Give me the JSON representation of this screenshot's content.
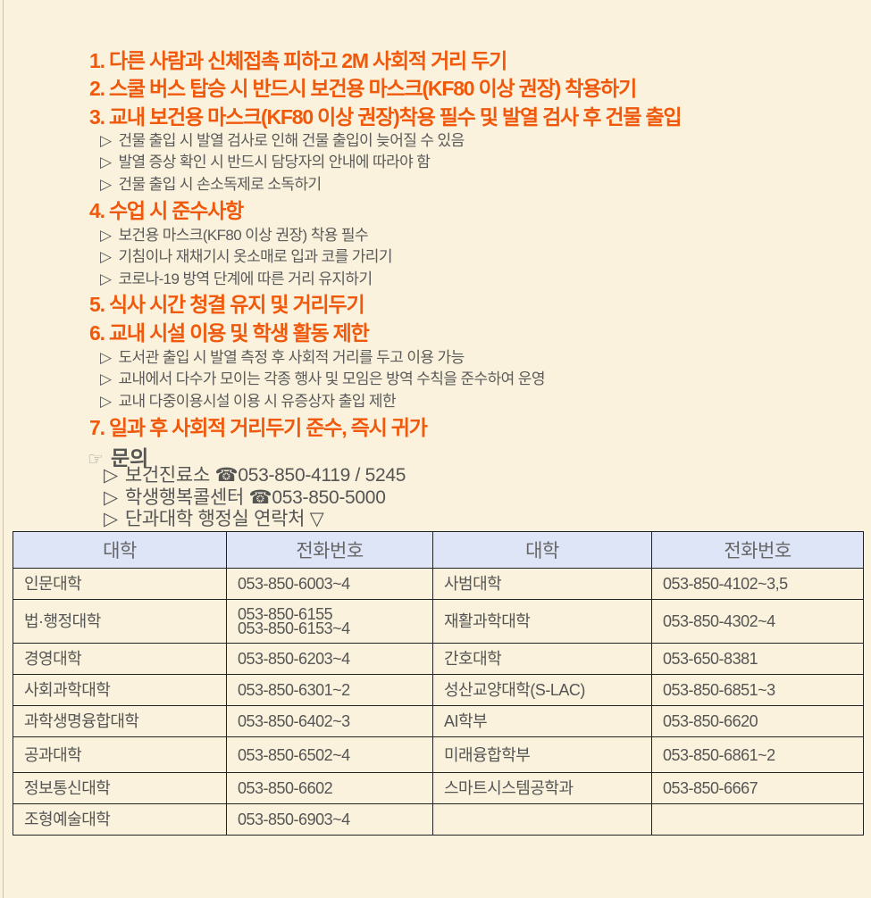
{
  "rules": [
    {
      "heading": "1. 다른 사람과 신체접촉 피하고 2M 사회적 거리 두기",
      "items": []
    },
    {
      "heading": "2. 스쿨 버스 탑승 시 반드시 보건용 마스크(KF80 이상 권장) 착용하기",
      "items": []
    },
    {
      "heading": "3. 교내 보건용 마스크(KF80 이상 권장)착용 필수 및 발열 검사 후 건물 출입",
      "items": [
        "건물 출입 시 발열 검사로 인해 건물 출입이 늦어질 수 있음",
        "발열 증상 확인 시 반드시 담당자의 안내에 따라야 함",
        "건물 출입 시 손소독제로 소독하기"
      ]
    },
    {
      "heading": "4. 수업 시 준수사항",
      "items": [
        "보건용 마스크(KF80 이상 권장) 착용 필수",
        "기침이나 재채기시 옷소매로 입과 코를 가리기",
        "코로나-19 방역 단계에 따른 거리 유지하기"
      ]
    },
    {
      "heading": "5. 식사 시간 청결 유지 및 거리두기",
      "items": []
    },
    {
      "heading": "6. 교내 시설 이용 및 학생 활동 제한",
      "items": [
        "도서관 출입 시 발열 측정 후 사회적 거리를 두고 이용 가능",
        "교내에서 다수가 모이는 각종 행사 및 모임은 방역 수칙을 준수하여 운영",
        "교내 다중이용시설 이용 시 유증상자 출입 제한"
      ]
    },
    {
      "heading": "7. 일과 후 사회적 거리두기 준수, 즉시 귀가",
      "items": []
    }
  ],
  "bullet": "▷",
  "inquiry": {
    "hand": "☞",
    "title": "문의",
    "contacts": [
      "보건진료소 ☎053-850-4119 / 5245",
      "학생행복콜센터 ☎053-850-5000",
      "단과대학 행정실 연락처 ▽"
    ]
  },
  "table": {
    "headers": [
      "대학",
      "전화번호",
      "대학",
      "전화번호"
    ],
    "rows": [
      [
        "인문대학",
        "053-850-6003~4",
        "사범대학",
        "053-850-4102~3,5"
      ],
      [
        "법·행정대학",
        "053-850-6155\n053-850-6153~4",
        "재활과학대학",
        "053-850-4302~4"
      ],
      [
        "경영대학",
        "053-850-6203~4",
        "간호대학",
        "053-650-8381"
      ],
      [
        "사회과학대학",
        "053-850-6301~2",
        "성산교양대학(S-LAC)",
        "053-850-6851~3"
      ],
      [
        "과학생명융합대학",
        "053-850-6402~3",
        "AI학부",
        "053-850-6620"
      ],
      [
        "공과대학",
        "053-850-6502~4",
        "미래융합학부",
        "053-850-6861~2"
      ],
      [
        "정보통신대학",
        "053-850-6602",
        "스마트시스템공학과",
        "053-850-6667"
      ],
      [
        "조형예술대학",
        "053-850-6903~4",
        "",
        ""
      ]
    ]
  },
  "colors": {
    "heading": "#f0590c",
    "text": "#5a5a5a",
    "header_bg": "#dde5f7",
    "page_bg": "#faf2dc"
  }
}
